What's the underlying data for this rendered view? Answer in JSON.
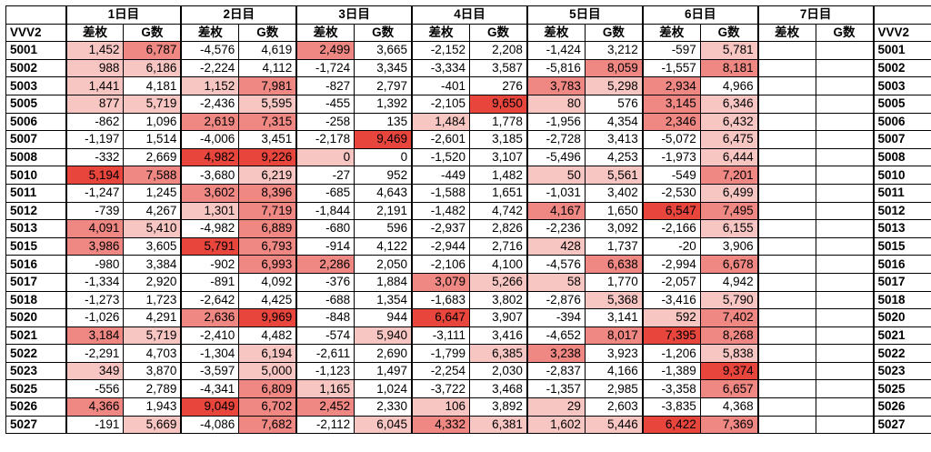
{
  "table": {
    "corner_label": "VVV2",
    "right_label": "VVV2",
    "days": [
      "1日目",
      "2日目",
      "3日目",
      "4日目",
      "5日目",
      "6日目",
      "7日目"
    ],
    "sub_headers": [
      "差枚",
      "G数"
    ],
    "rows": [
      {
        "id": "5001",
        "vals": [
          "1,452",
          "6,787",
          "-4,576",
          "4,619",
          "2,499",
          "3,665",
          "-2,152",
          "2,208",
          "-1,424",
          "3,212",
          "-597",
          "5,781",
          "",
          ""
        ]
      },
      {
        "id": "5002",
        "vals": [
          "988",
          "6,186",
          "-2,224",
          "4,112",
          "-1,724",
          "3,345",
          "-3,334",
          "3,587",
          "-5,816",
          "8,059",
          "-1,557",
          "8,181",
          "",
          ""
        ]
      },
      {
        "id": "5003",
        "vals": [
          "1,441",
          "4,181",
          "1,152",
          "7,981",
          "-827",
          "2,797",
          "-401",
          "276",
          "3,783",
          "5,298",
          "2,934",
          "4,966",
          "",
          ""
        ]
      },
      {
        "id": "5005",
        "vals": [
          "877",
          "5,719",
          "-2,436",
          "5,595",
          "-455",
          "1,392",
          "-2,105",
          "9,650",
          "80",
          "576",
          "3,145",
          "6,346",
          "",
          ""
        ]
      },
      {
        "id": "5006",
        "vals": [
          "-862",
          "1,096",
          "2,619",
          "7,315",
          "-258",
          "135",
          "1,484",
          "1,778",
          "-1,956",
          "4,354",
          "2,346",
          "6,432",
          "",
          ""
        ]
      },
      {
        "id": "5007",
        "vals": [
          "-1,197",
          "1,514",
          "-4,006",
          "3,451",
          "-2,178",
          "9,469",
          "-2,601",
          "3,185",
          "-2,728",
          "3,413",
          "-5,072",
          "6,475",
          "",
          ""
        ]
      },
      {
        "id": "5008",
        "vals": [
          "-332",
          "2,669",
          "4,982",
          "9,226",
          "0",
          "0",
          "-1,520",
          "3,107",
          "-5,496",
          "4,253",
          "-1,973",
          "6,444",
          "",
          ""
        ]
      },
      {
        "id": "5010",
        "vals": [
          "5,194",
          "7,588",
          "-3,680",
          "6,219",
          "-27",
          "952",
          "-449",
          "1,482",
          "50",
          "5,561",
          "-549",
          "7,201",
          "",
          ""
        ]
      },
      {
        "id": "5011",
        "vals": [
          "-1,247",
          "1,245",
          "3,602",
          "8,396",
          "-685",
          "4,643",
          "-1,588",
          "1,651",
          "-1,031",
          "3,402",
          "-2,530",
          "6,499",
          "",
          ""
        ]
      },
      {
        "id": "5012",
        "vals": [
          "-739",
          "4,267",
          "1,301",
          "7,719",
          "-1,844",
          "2,191",
          "-1,482",
          "4,742",
          "4,167",
          "1,650",
          "6,547",
          "7,495",
          "",
          ""
        ]
      },
      {
        "id": "5013",
        "vals": [
          "4,091",
          "5,410",
          "-4,982",
          "6,889",
          "-680",
          "596",
          "-2,937",
          "2,826",
          "-2,236",
          "3,092",
          "-2,166",
          "6,155",
          "",
          ""
        ]
      },
      {
        "id": "5015",
        "vals": [
          "3,986",
          "3,605",
          "5,791",
          "6,793",
          "-914",
          "4,122",
          "-2,944",
          "2,716",
          "428",
          "1,737",
          "-20",
          "3,906",
          "",
          ""
        ]
      },
      {
        "id": "5016",
        "vals": [
          "-980",
          "3,384",
          "-902",
          "6,993",
          "2,286",
          "2,050",
          "-2,106",
          "4,100",
          "-4,576",
          "6,638",
          "-2,994",
          "6,678",
          "",
          ""
        ]
      },
      {
        "id": "5017",
        "vals": [
          "-1,334",
          "2,920",
          "-891",
          "4,092",
          "-376",
          "1,884",
          "3,079",
          "5,266",
          "58",
          "1,770",
          "-2,057",
          "4,942",
          "",
          ""
        ]
      },
      {
        "id": "5018",
        "vals": [
          "-1,273",
          "1,723",
          "-2,642",
          "4,425",
          "-688",
          "1,354",
          "-1,683",
          "3,802",
          "-2,876",
          "5,368",
          "-3,416",
          "5,790",
          "",
          ""
        ]
      },
      {
        "id": "5020",
        "vals": [
          "-1,026",
          "4,291",
          "2,636",
          "9,969",
          "-848",
          "944",
          "6,647",
          "3,907",
          "-394",
          "3,141",
          "592",
          "7,402",
          "",
          ""
        ]
      },
      {
        "id": "5021",
        "vals": [
          "3,184",
          "5,719",
          "-2,410",
          "4,482",
          "-574",
          "5,940",
          "-3,111",
          "3,416",
          "-4,652",
          "8,017",
          "7,395",
          "8,268",
          "",
          ""
        ]
      },
      {
        "id": "5022",
        "vals": [
          "-2,291",
          "4,703",
          "-1,304",
          "6,194",
          "-2,611",
          "2,690",
          "-1,799",
          "6,385",
          "3,238",
          "3,923",
          "-1,206",
          "5,838",
          "",
          ""
        ]
      },
      {
        "id": "5023",
        "vals": [
          "349",
          "3,870",
          "-3,597",
          "5,000",
          "-1,123",
          "1,497",
          "-2,254",
          "2,030",
          "-2,837",
          "4,166",
          "-1,389",
          "9,374",
          "",
          ""
        ]
      },
      {
        "id": "5025",
        "vals": [
          "-556",
          "2,789",
          "-4,341",
          "6,809",
          "1,165",
          "1,024",
          "-3,722",
          "3,468",
          "-1,357",
          "2,985",
          "-3,358",
          "6,657",
          "",
          ""
        ]
      },
      {
        "id": "5026",
        "vals": [
          "4,366",
          "1,943",
          "9,049",
          "6,702",
          "2,452",
          "2,330",
          "106",
          "3,892",
          "29",
          "2,603",
          "-3,835",
          "4,368",
          "",
          ""
        ]
      },
      {
        "id": "5027",
        "vals": [
          "-191",
          "5,669",
          "-4,086",
          "7,682",
          "-2,112",
          "6,045",
          "4,332",
          "6,381",
          "1,602",
          "5,446",
          "6,422",
          "7,369",
          "",
          ""
        ]
      }
    ]
  },
  "colors": {
    "red": "#e8453c",
    "mid": "#ef8783",
    "pale": "#f7c6c3",
    "white": "#ffffff"
  }
}
